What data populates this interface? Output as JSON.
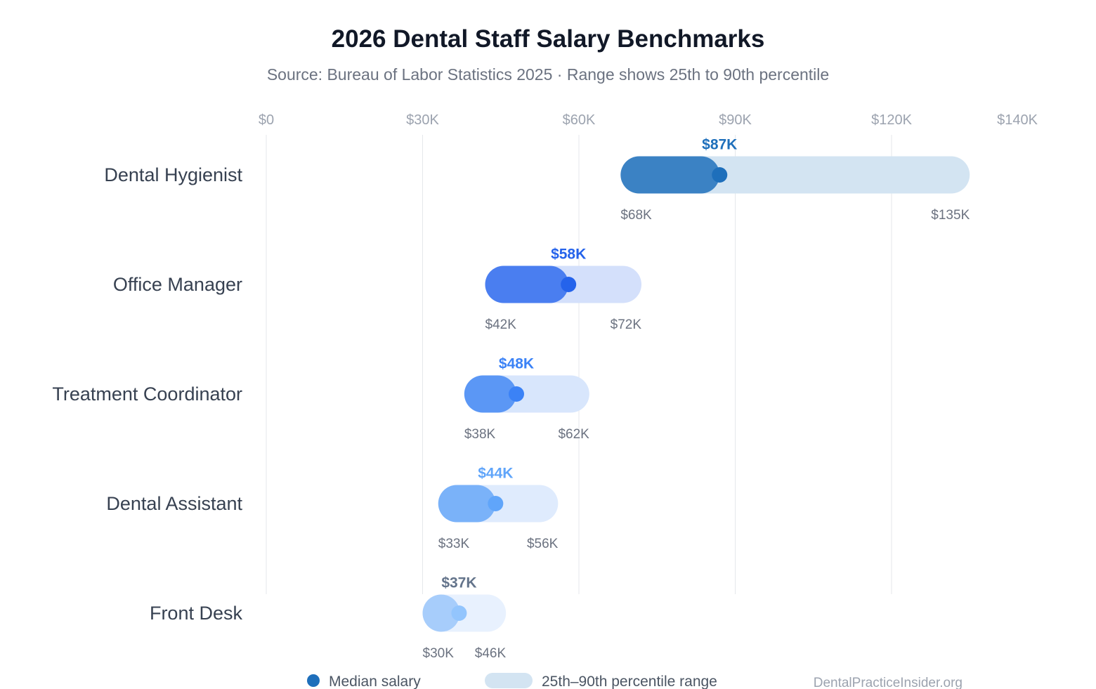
{
  "title": "2026 Dental Staff Salary Benchmarks",
  "subtitle": "Source: Bureau of Labor Statistics 2025 · Range shows 25th to 90th percentile",
  "footer_credit": "DentalPracticeInsider.org",
  "legend": {
    "median_label": "Median salary",
    "range_label": "25th–90th percentile range"
  },
  "chart_data": {
    "type": "bar",
    "title": "2026 Dental Staff Salary Benchmarks",
    "subtitle": "Source: Bureau of Labor Statistics 2025 · Range shows 25th to 90th percentile",
    "xlabel": "",
    "ylabel": "",
    "xlim": [
      0,
      140000
    ],
    "x_ticks": [
      {
        "value": 0,
        "label": "$0"
      },
      {
        "value": 30000,
        "label": "$30K"
      },
      {
        "value": 60000,
        "label": "$60K"
      },
      {
        "value": 90000,
        "label": "$90K"
      },
      {
        "value": 120000,
        "label": "$120K"
      },
      {
        "value": 140000,
        "label": "$140K"
      }
    ],
    "grid": true,
    "legend_position": "bottom",
    "categories": [
      "Dental Hygienist",
      "Office Manager",
      "Treatment Coordinator",
      "Dental Assistant",
      "Front Desk"
    ],
    "series": [
      {
        "name": "Median salary",
        "values": [
          87000,
          58000,
          48000,
          44000,
          37000
        ]
      },
      {
        "name": "25th–90th percentile range",
        "low": [
          68000,
          42000,
          38000,
          33000,
          30000
        ],
        "high": [
          135000,
          72000,
          62000,
          56000,
          46000
        ]
      }
    ],
    "rows": [
      {
        "label": "Dental Hygienist",
        "low": 68000,
        "median": 87000,
        "high": 135000,
        "low_label": "$68K",
        "median_label": "$87K",
        "high_label": "$135K",
        "color": "#3b82c4",
        "track": "#d3e4f2",
        "dot": "#1e6fbb",
        "text": "#1e6fbb"
      },
      {
        "label": "Office Manager",
        "low": 42000,
        "median": 58000,
        "high": 72000,
        "low_label": "$42K",
        "median_label": "$58K",
        "high_label": "$72K",
        "color": "#4a7ef0",
        "track": "#d4e0fb",
        "dot": "#2563eb",
        "text": "#2563eb"
      },
      {
        "label": "Treatment Coordinator",
        "low": 38000,
        "median": 48000,
        "high": 62000,
        "low_label": "$38K",
        "median_label": "$48K",
        "high_label": "$62K",
        "color": "#5b97f5",
        "track": "#d8e6fc",
        "dot": "#3b82f6",
        "text": "#3b82f6"
      },
      {
        "label": "Dental Assistant",
        "low": 33000,
        "median": 44000,
        "high": 56000,
        "low_label": "$33K",
        "median_label": "$44K",
        "high_label": "$56K",
        "color": "#7ab2f9",
        "track": "#dfebfd",
        "dot": "#60a5fa",
        "text": "#60a5fa"
      },
      {
        "label": "Front Desk",
        "low": 30000,
        "median": 37000,
        "high": 46000,
        "low_label": "$30K",
        "median_label": "$37K",
        "high_label": "$46K",
        "color": "#a7cdfb",
        "track": "#e8f1fe",
        "dot": "#93c5fd",
        "text": "#64748b"
      }
    ]
  }
}
